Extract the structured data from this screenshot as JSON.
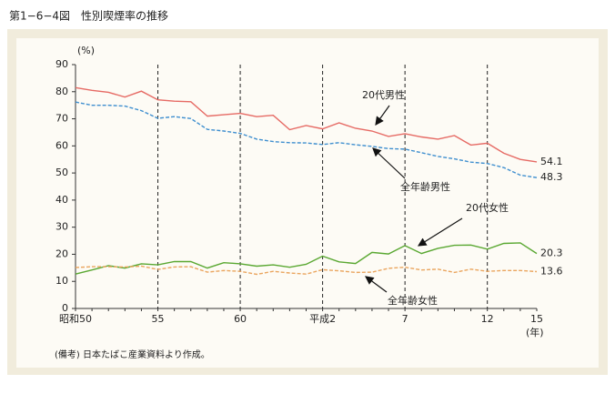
{
  "header": {
    "title": "第1−6−4図　性別喫煙率の推移"
  },
  "chart_data": {
    "type": "line",
    "ylabel": "(%)",
    "xlabel": "(年)",
    "note": "(備考) 日本たばこ産業資料より作成。",
    "categories": [
      "昭和50",
      null,
      null,
      null,
      null,
      "55",
      null,
      null,
      null,
      null,
      "60",
      null,
      null,
      null,
      null,
      "平成2",
      null,
      null,
      null,
      null,
      "7",
      null,
      null,
      null,
      null,
      "12",
      null,
      null,
      "15"
    ],
    "series": [
      {
        "name": "20代男性",
        "color": "#e66a64",
        "dash": false,
        "values": [
          81.5,
          80.5,
          79.8,
          78,
          80.2,
          77,
          76.5,
          76.3,
          71,
          71.5,
          72,
          70.8,
          71.3,
          66,
          67.5,
          66.3,
          68.5,
          66.5,
          65.5,
          63.5,
          64.5,
          63.3,
          62.5,
          63.8,
          60.3,
          61,
          57.3,
          55,
          54.1
        ]
      },
      {
        "name": "全年齢男性",
        "color": "#3f8fcf",
        "dash": true,
        "values": [
          76.2,
          75,
          75,
          74.7,
          73,
          70.2,
          70.8,
          70.1,
          66.1,
          65.5,
          64.6,
          62.5,
          61.6,
          61.2,
          61.1,
          60.5,
          61.2,
          60.4,
          59.8,
          59,
          58.8,
          57.5,
          56.1,
          55.2,
          54,
          53.5,
          52,
          49.2,
          48.3
        ]
      },
      {
        "name": "20代女性",
        "color": "#5aa832",
        "dash": false,
        "values": [
          12.7,
          14.2,
          15.8,
          14.9,
          16.5,
          16.1,
          17.3,
          17.3,
          14.9,
          16.9,
          16.5,
          15.6,
          16.1,
          15.2,
          16.3,
          19.3,
          17.2,
          16.6,
          20.7,
          20.1,
          23.2,
          20.3,
          22.2,
          23.3,
          23.4,
          21.9,
          24,
          24.2,
          20.3
        ]
      },
      {
        "name": "全年齢女性",
        "color": "#eaa55e",
        "dash": true,
        "values": [
          15.1,
          15.4,
          15.4,
          15.3,
          15.6,
          14.4,
          15.3,
          15.4,
          13.4,
          14,
          13.7,
          12.6,
          13.7,
          13.1,
          12.7,
          14.3,
          13.9,
          13.3,
          13.4,
          14.8,
          15.2,
          14.2,
          14.5,
          13.3,
          14.5,
          13.7,
          14,
          14,
          13.6
        ]
      }
    ],
    "ylim": [
      0,
      90
    ],
    "yticks": [
      0,
      10,
      20,
      30,
      40,
      50,
      60,
      70,
      80,
      90
    ]
  }
}
